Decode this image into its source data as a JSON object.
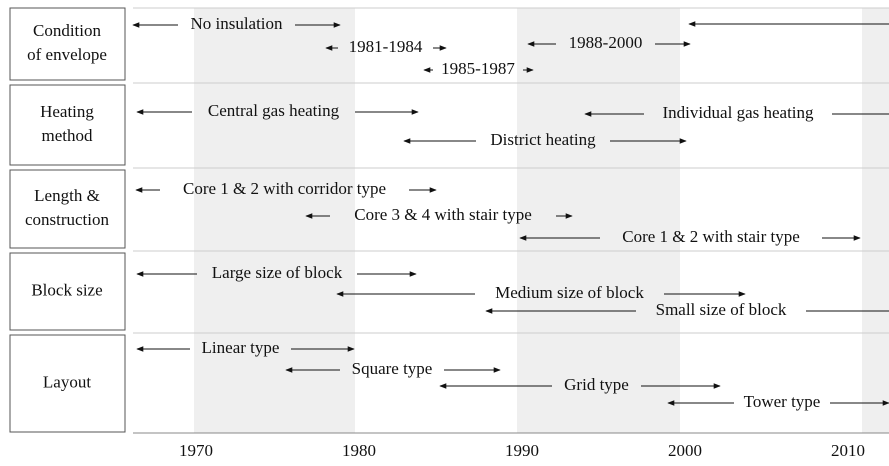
{
  "rows": [
    {
      "label": [
        "Condition",
        "of envelope"
      ],
      "items": [
        "No insulation",
        "1981-1984",
        "1985-1987",
        "1988-2000"
      ]
    },
    {
      "label": [
        "Heating",
        "method"
      ],
      "items": [
        "Central gas heating",
        "Individual gas heating",
        "District heating"
      ]
    },
    {
      "label": [
        "Length &",
        "construction"
      ],
      "items": [
        "Core 1 & 2 with corridor type",
        "Core 3 & 4 with stair type",
        "Core 1 & 2 with stair type"
      ]
    },
    {
      "label": [
        "Block size"
      ],
      "items": [
        "Large size of block",
        "Medium size of block",
        "Small size of block"
      ]
    },
    {
      "label": [
        "Layout"
      ],
      "items": [
        "Linear type",
        "Square type",
        "Grid type",
        "Tower type"
      ]
    }
  ],
  "x_axis": [
    1970,
    1980,
    1990,
    2000,
    2010
  ]
}
